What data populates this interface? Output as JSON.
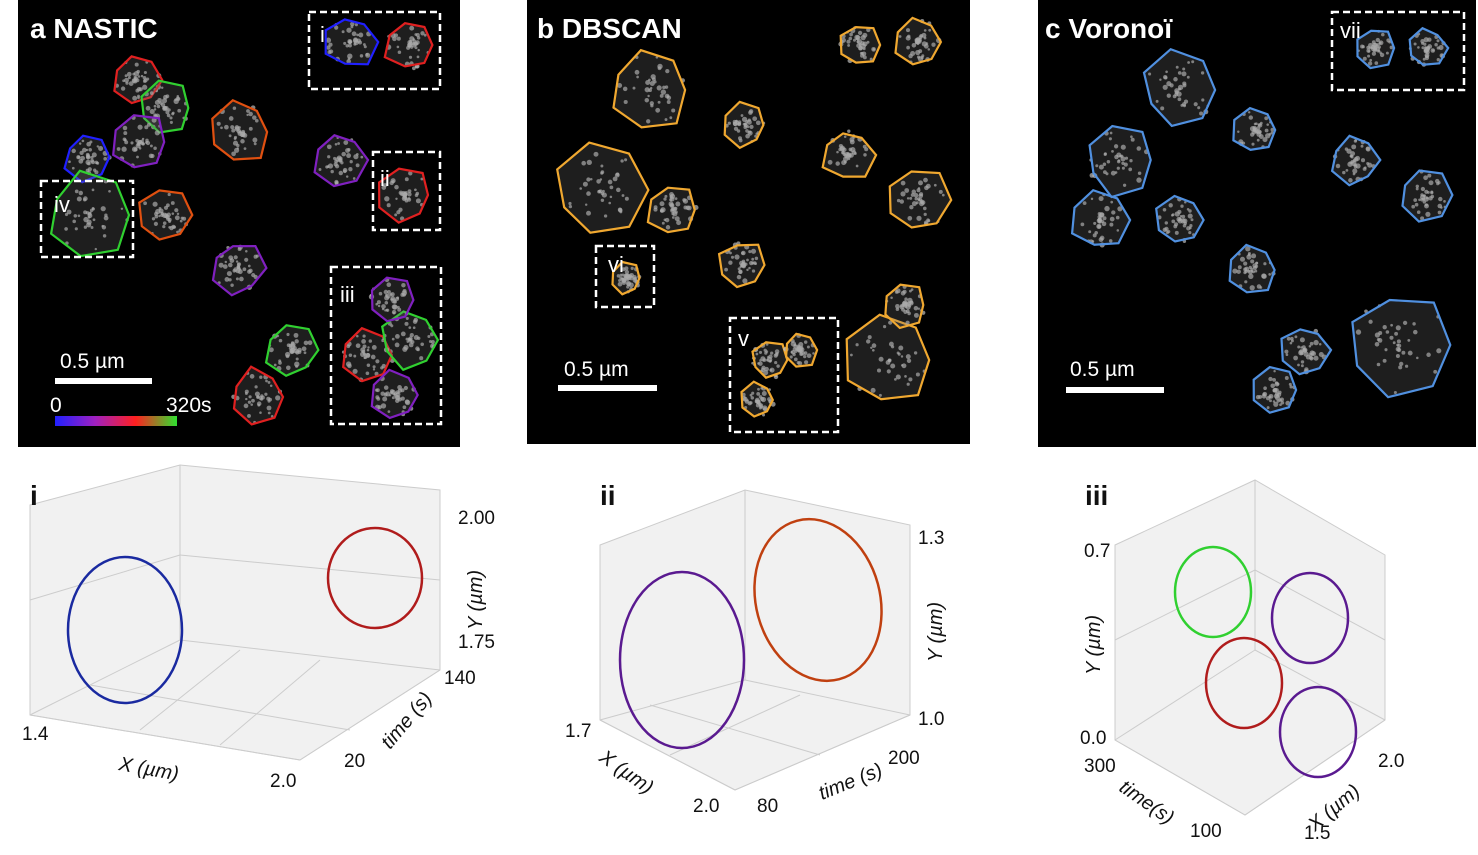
{
  "panels": [
    {
      "label": "a NASTIC",
      "scale_bar": "0.5 µm",
      "colorbar": {
        "min": "0",
        "max": "320s"
      },
      "insets": [
        "i",
        "ii",
        "iii",
        "iv"
      ]
    },
    {
      "label": "b DBSCAN",
      "scale_bar": "0.5 µm",
      "insets": [
        "vi",
        "v"
      ]
    },
    {
      "label": "c Voronoï",
      "scale_bar": "0.5 µm",
      "insets": [
        "vii"
      ]
    }
  ],
  "plots3d": [
    {
      "label": "i",
      "x_label": "X (µm)",
      "time_label": "time (s)",
      "y_label": "Y (µm)",
      "x_ticks": [
        "1.4",
        "2.0"
      ],
      "time_ticks": [
        "20",
        "140"
      ],
      "y_ticks": [
        "1.75",
        "2.00"
      ]
    },
    {
      "label": "ii",
      "x_label": "X (µm)",
      "time_label": "time (s)",
      "y_label": "Y (µm)",
      "x_ticks": [
        "1.7",
        "2.0"
      ],
      "time_ticks": [
        "80",
        "200"
      ],
      "y_ticks": [
        "1.0",
        "1.3"
      ]
    },
    {
      "label": "iii",
      "x_label": "X (µm)",
      "time_label": "time(s)",
      "y_label": "Y (µm)",
      "x_ticks": [
        "1.5",
        "2.0"
      ],
      "time_ticks": [
        "100",
        "300"
      ],
      "y_ticks": [
        "0.0",
        "0.7"
      ]
    }
  ]
}
